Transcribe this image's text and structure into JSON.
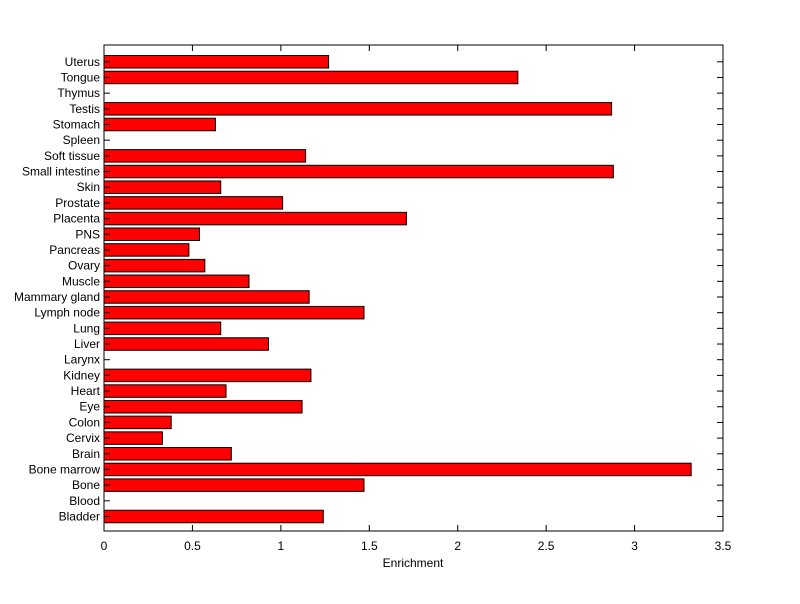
{
  "chart_data": {
    "type": "bar",
    "orientation": "horizontal",
    "categories": [
      "Bladder",
      "Blood",
      "Bone",
      "Bone marrow",
      "Brain",
      "Cervix",
      "Colon",
      "Eye",
      "Heart",
      "Kidney",
      "Larynx",
      "Liver",
      "Lung",
      "Lymph node",
      "Mammary gland",
      "Muscle",
      "Ovary",
      "Pancreas",
      "PNS",
      "Placenta",
      "Prostate",
      "Skin",
      "Small intestine",
      "Soft tissue",
      "Spleen",
      "Stomach",
      "Testis",
      "Thymus",
      "Tongue",
      "Uterus"
    ],
    "values": [
      1.24,
      0,
      1.47,
      3.32,
      0.72,
      0.33,
      0.38,
      1.12,
      0.69,
      1.17,
      0,
      0.93,
      0.66,
      1.47,
      1.16,
      0.82,
      0.57,
      0.48,
      0.54,
      1.71,
      1.01,
      0.66,
      2.88,
      1.14,
      0,
      0.63,
      2.87,
      0,
      2.34,
      1.27
    ],
    "xlabel": "Enrichment",
    "ylabel": "",
    "title": "",
    "xlim": [
      0,
      3.5
    ],
    "xticks": [
      "0",
      "0.5",
      "1",
      "1.5",
      "2",
      "2.5",
      "3",
      "3.5"
    ],
    "grid": false,
    "colors": {
      "bar_fill": "#ff0000",
      "bar_stroke": "#000000",
      "axis": "#000000"
    }
  }
}
